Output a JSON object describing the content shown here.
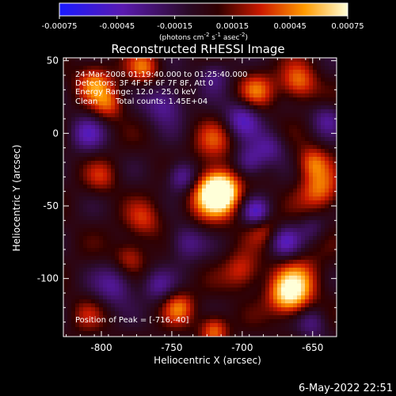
{
  "colorbar": {
    "ticks": [
      "-0.00075",
      "-0.00045",
      "-0.00015",
      "0.00015",
      "0.00045",
      "0.00075"
    ],
    "units_text": "(photons cm",
    "units_sup1": "-2",
    "units_mid": " s",
    "units_sup2": "-1",
    "units_end": " asec",
    "units_sup3": "-2",
    "units_close": ")"
  },
  "chart_data": {
    "type": "heatmap",
    "title": "Reconstructed RHESSI Image",
    "xlabel": "Heliocentric X (arcsec)",
    "ylabel": "Heliocentric Y (arcsec)",
    "xlim": [
      -827,
      -633
    ],
    "ylim": [
      -140,
      52
    ],
    "xticks": [
      -800,
      -750,
      -700,
      -650
    ],
    "yticks": [
      50,
      0,
      -50,
      -100
    ],
    "xtick_labels": [
      "-800",
      "-750",
      "-700",
      "-650"
    ],
    "ytick_labels": [
      "50",
      "0",
      "-50",
      "-100"
    ],
    "color_range": [
      -0.00075,
      0.00075
    ],
    "colormap": "rainbow/fire (blue-purple-red-orange-yellow-white)",
    "annotations": [
      "24-Mar-2008 01:19:40.000 to 01:25:40.000",
      "Detectors: 3F 4F 5F 6F 7F 8F, Att 0",
      "Energy Range: 12.0 - 25.0 keV",
      "Clean",
      "Total counts: 1.45E+04"
    ],
    "peak_label": "Position of Peak = [-716,-40]",
    "peak": {
      "x": -716,
      "y": -40
    },
    "blobs": [
      {
        "x": -716,
        "y": -40,
        "v": 0.00075,
        "s": 9
      },
      {
        "x": -722,
        "y": -42,
        "v": 0.00045,
        "s": 14
      },
      {
        "x": -667,
        "y": -112,
        "v": 0.0006,
        "s": 10
      },
      {
        "x": -660,
        "y": -100,
        "v": 0.00035,
        "s": 12
      },
      {
        "x": -805,
        "y": 35,
        "v": 0.00045,
        "s": 9
      },
      {
        "x": -795,
        "y": 20,
        "v": 0.00035,
        "s": 8
      },
      {
        "x": -770,
        "y": 45,
        "v": 0.0004,
        "s": 8
      },
      {
        "x": -720,
        "y": -5,
        "v": 0.0003,
        "s": 10
      },
      {
        "x": -690,
        "y": 30,
        "v": 0.0004,
        "s": 9
      },
      {
        "x": -660,
        "y": 35,
        "v": 0.00045,
        "s": 9
      },
      {
        "x": -645,
        "y": -40,
        "v": 0.00045,
        "s": 10
      },
      {
        "x": -650,
        "y": -20,
        "v": 0.0004,
        "s": 8
      },
      {
        "x": -770,
        "y": -60,
        "v": 0.0003,
        "s": 9
      },
      {
        "x": -780,
        "y": -85,
        "v": 0.0003,
        "s": 8
      },
      {
        "x": -800,
        "y": -30,
        "v": 0.00025,
        "s": 8
      },
      {
        "x": -700,
        "y": -95,
        "v": 0.00035,
        "s": 9
      },
      {
        "x": -745,
        "y": -120,
        "v": 0.0004,
        "s": 8
      },
      {
        "x": -720,
        "y": -135,
        "v": 0.00045,
        "s": 7
      },
      {
        "x": -685,
        "y": -65,
        "v": 0.0003,
        "s": 8
      },
      {
        "x": -810,
        "y": -125,
        "v": 0.0002,
        "s": 8
      },
      {
        "x": -742,
        "y": -30,
        "v": -0.0005,
        "s": 8
      },
      {
        "x": -695,
        "y": -20,
        "v": -0.0004,
        "s": 8
      },
      {
        "x": -690,
        "y": -55,
        "v": -0.0005,
        "s": 7
      },
      {
        "x": -740,
        "y": -75,
        "v": -0.00035,
        "s": 9
      },
      {
        "x": -755,
        "y": 20,
        "v": -0.0004,
        "s": 10
      },
      {
        "x": -700,
        "y": 10,
        "v": -0.00045,
        "s": 9
      },
      {
        "x": -670,
        "y": -75,
        "v": -0.0004,
        "s": 8
      },
      {
        "x": -680,
        "y": -10,
        "v": -0.0003,
        "s": 8
      },
      {
        "x": -810,
        "y": 0,
        "v": -0.00035,
        "s": 9
      },
      {
        "x": -790,
        "y": -105,
        "v": -0.00035,
        "s": 10
      },
      {
        "x": -760,
        "y": -105,
        "v": -0.0003,
        "s": 8
      },
      {
        "x": -650,
        "y": -130,
        "v": -0.0003,
        "s": 8
      },
      {
        "x": -720,
        "y": 40,
        "v": -0.0003,
        "s": 8
      },
      {
        "x": -640,
        "y": 10,
        "v": -0.0003,
        "s": 8
      },
      {
        "x": -650,
        "y": -65,
        "v": -0.0002,
        "s": 7
      }
    ]
  },
  "footer": {
    "date": "6-May-2022 22:51"
  }
}
